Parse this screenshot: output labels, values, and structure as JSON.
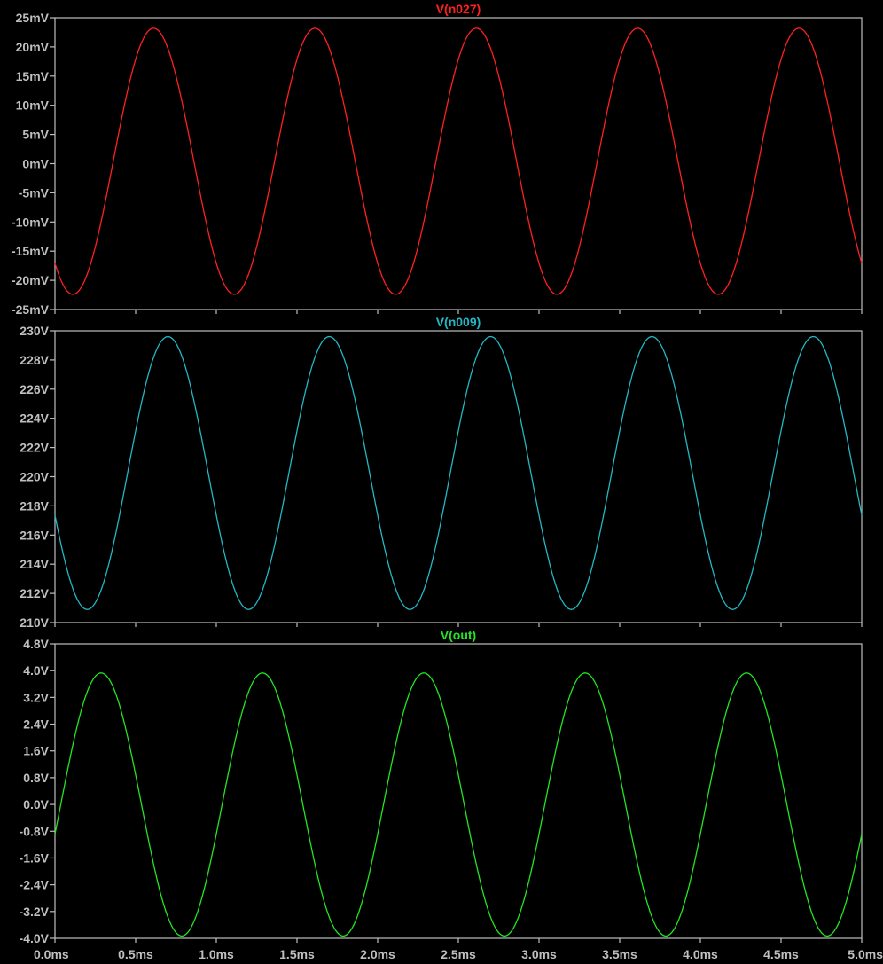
{
  "chart_data": [
    {
      "type": "line",
      "title": "V(n027)",
      "color": "#ff2020",
      "grid": false,
      "ylim": [
        -25,
        25
      ],
      "yticks": [
        {
          "value": 25,
          "label": "25mV"
        },
        {
          "value": 20,
          "label": "20mV"
        },
        {
          "value": 15,
          "label": "15mV"
        },
        {
          "value": 10,
          "label": "10mV"
        },
        {
          "value": 5,
          "label": "5mV"
        },
        {
          "value": 0,
          "label": "0mV"
        },
        {
          "value": -5,
          "label": "-5mV"
        },
        {
          "value": -10,
          "label": "-10mV"
        },
        {
          "value": -15,
          "label": "-15mV"
        },
        {
          "value": -20,
          "label": "-20mV"
        },
        {
          "value": -25,
          "label": "-25mV"
        }
      ],
      "series": [
        {
          "name": "V(n027)",
          "wave": {
            "offset": 0.4,
            "amplitude": 22.8,
            "frequency_khz": 1,
            "phase_deg": 230
          }
        }
      ]
    },
    {
      "type": "line",
      "title": "V(n009)",
      "color": "#22b8c4",
      "grid": false,
      "ylim": [
        210,
        230
      ],
      "yticks": [
        {
          "value": 230,
          "label": "230V"
        },
        {
          "value": 228,
          "label": "228V"
        },
        {
          "value": 226,
          "label": "226V"
        },
        {
          "value": 224,
          "label": "224V"
        },
        {
          "value": 222,
          "label": "222V"
        },
        {
          "value": 220,
          "label": "220V"
        },
        {
          "value": 218,
          "label": "218V"
        },
        {
          "value": 216,
          "label": "216V"
        },
        {
          "value": 214,
          "label": "214V"
        },
        {
          "value": 212,
          "label": "212V"
        },
        {
          "value": 210,
          "label": "210V"
        }
      ],
      "series": [
        {
          "name": "V(n009)",
          "wave": {
            "offset": 220.25,
            "amplitude": 9.35,
            "frequency_khz": 1,
            "phase_deg": 198
          }
        }
      ]
    },
    {
      "type": "line",
      "title": "V(out)",
      "color": "#22e622",
      "grid": false,
      "ylim": [
        -4.0,
        4.8
      ],
      "yticks": [
        {
          "value": 4.8,
          "label": "4.8V"
        },
        {
          "value": 4.0,
          "label": "4.0V"
        },
        {
          "value": 3.2,
          "label": "3.2V"
        },
        {
          "value": 2.4,
          "label": "2.4V"
        },
        {
          "value": 1.6,
          "label": "1.6V"
        },
        {
          "value": 0.8,
          "label": "0.8V"
        },
        {
          "value": 0.0,
          "label": "0.0V"
        },
        {
          "value": -0.8,
          "label": "-0.8V"
        },
        {
          "value": -1.6,
          "label": "-1.6V"
        },
        {
          "value": -2.4,
          "label": "-2.4V"
        },
        {
          "value": -3.2,
          "label": "-3.2V"
        },
        {
          "value": -4.0,
          "label": "-4.0V"
        }
      ],
      "series": [
        {
          "name": "V(out)",
          "wave": {
            "offset": 0.0,
            "amplitude": 3.93,
            "frequency_khz": 1,
            "phase_deg": -13
          }
        }
      ]
    }
  ],
  "x_axis": {
    "unit": "ms",
    "xlim": [
      0.0,
      5.0
    ],
    "ticks": [
      {
        "value": 0.0,
        "label": "0.0ms"
      },
      {
        "value": 0.5,
        "label": "0.5ms"
      },
      {
        "value": 1.0,
        "label": "1.0ms"
      },
      {
        "value": 1.5,
        "label": "1.5ms"
      },
      {
        "value": 2.0,
        "label": "2.0ms"
      },
      {
        "value": 2.5,
        "label": "2.5ms"
      },
      {
        "value": 3.0,
        "label": "3.0ms"
      },
      {
        "value": 3.5,
        "label": "3.5ms"
      },
      {
        "value": 4.0,
        "label": "4.0ms"
      },
      {
        "value": 4.5,
        "label": "4.5ms"
      },
      {
        "value": 5.0,
        "label": "5.0ms"
      }
    ]
  },
  "style": {
    "background": "#000000",
    "frame": "#bfbfbf",
    "text": "#bfbfbf"
  }
}
